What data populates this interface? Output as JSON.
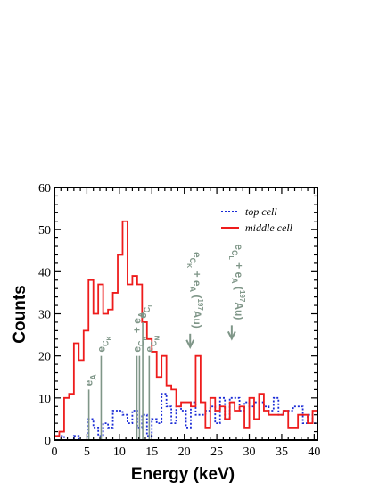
{
  "chart_data": {
    "type": "line",
    "xlabel": "Energy (keV)",
    "ylabel": "Counts",
    "xlim": [
      0,
      40.5
    ],
    "ylim": [
      0,
      60
    ],
    "x_ticks": [
      0,
      5,
      10,
      15,
      20,
      25,
      30,
      35,
      40
    ],
    "y_ticks": [
      0,
      10,
      20,
      30,
      40,
      50,
      60
    ],
    "legend_position": "top-right",
    "bin_width": 0.75,
    "series": [
      {
        "name": "top cell",
        "style": "dotted",
        "color": "#1a2bd6",
        "values": [
          1,
          1,
          0,
          0,
          1,
          0,
          0,
          5,
          3,
          1,
          4,
          3,
          7,
          7,
          6,
          4,
          7,
          3,
          6,
          1,
          5,
          4,
          11,
          8,
          4,
          8,
          7,
          3,
          9,
          6,
          6,
          7,
          8,
          4,
          10,
          5,
          10,
          10,
          7,
          9,
          8,
          9,
          9,
          8,
          7,
          10,
          6,
          7,
          7,
          8,
          8,
          4,
          6,
          4
        ]
      },
      {
        "name": "middle cell",
        "style": "solid",
        "color": "#ee1c1c",
        "values": [
          1,
          2,
          10,
          11,
          23,
          19,
          26,
          38,
          30,
          37,
          30,
          31,
          35,
          44,
          52,
          37,
          39,
          37,
          28,
          24,
          21,
          15,
          20,
          13,
          12,
          8,
          9,
          9,
          8,
          20,
          9,
          3,
          10,
          7,
          8,
          5,
          9,
          7,
          8,
          3,
          10,
          5,
          11,
          7,
          6,
          6,
          6,
          7,
          3,
          3,
          6,
          6,
          4,
          7
        ]
      }
    ],
    "annotations": [
      {
        "lines": [
          "e",
          "A"
        ],
        "x": 5.3,
        "top": 12,
        "bins": [
          5.3
        ]
      },
      {
        "lines": [
          "e",
          "C",
          "K"
        ],
        "x": 7.2,
        "top": 20,
        "bins": [
          7.2
        ]
      },
      {
        "lines": [
          "e",
          "C",
          "K",
          "+ e",
          "A"
        ],
        "x": 12.7,
        "top": 20,
        "bins": [
          12.7,
          13.1
        ]
      },
      {
        "lines": [
          "e",
          "C",
          "L"
        ],
        "x": 13.6,
        "top": 28,
        "bins": [
          13.6
        ]
      },
      {
        "lines": [
          "e",
          "C",
          "M"
        ],
        "x": 14.6,
        "top": 20,
        "bins": [
          14.6
        ]
      },
      {
        "lines": [
          "e",
          "C",
          "K",
          "+ e",
          "A",
          "(",
          "197",
          "Au)"
        ],
        "x": 20.9,
        "top": 24,
        "arrow": true
      },
      {
        "lines": [
          "e",
          "C",
          "L",
          "+ e",
          "A",
          "(",
          "197",
          "Au)"
        ],
        "x": 27.3,
        "top": 26,
        "arrow": true
      }
    ],
    "annotation_color": "#7f9688"
  }
}
